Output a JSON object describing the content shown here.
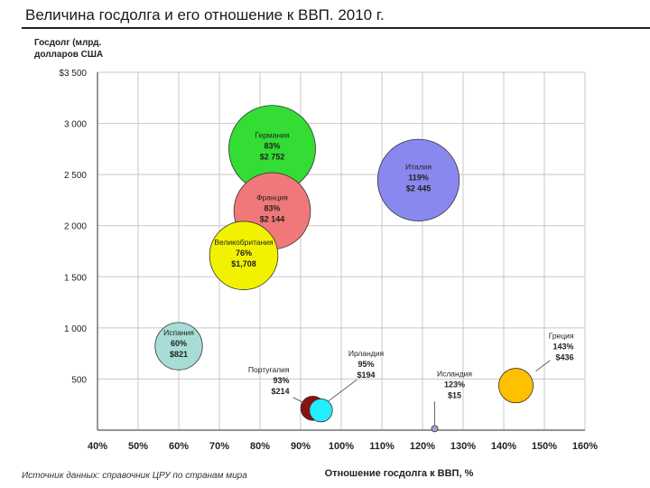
{
  "page": {
    "title": "Величина госдолга и его отношение к ВВП. 2010 г.",
    "source": "Источник данных: справочник ЦРУ по странам мира"
  },
  "chart_data": {
    "type": "bubble",
    "ylabel_lines": [
      "Госдолг (млрд.",
      "долларов США"
    ],
    "xlabel": "Отношение госдолга к ВВП, %",
    "xlim": [
      40,
      160
    ],
    "ylim": [
      0,
      3500
    ],
    "x_ticks": [
      {
        "v": 40,
        "label": "40%"
      },
      {
        "v": 50,
        "label": "50%"
      },
      {
        "v": 60,
        "label": "60%"
      },
      {
        "v": 70,
        "label": "70%"
      },
      {
        "v": 80,
        "label": "80%"
      },
      {
        "v": 90,
        "label": "90%"
      },
      {
        "v": 100,
        "label": "100%"
      },
      {
        "v": 110,
        "label": "110%"
      },
      {
        "v": 120,
        "label": "120%"
      },
      {
        "v": 130,
        "label": "130%"
      },
      {
        "v": 140,
        "label": "140%"
      },
      {
        "v": 150,
        "label": "150%"
      },
      {
        "v": 160,
        "label": "160%"
      }
    ],
    "y_ticks": [
      {
        "v": 500,
        "label": "500"
      },
      {
        "v": 1000,
        "label": "1 000"
      },
      {
        "v": 1500,
        "label": "1 500"
      },
      {
        "v": 2000,
        "label": "2 000"
      },
      {
        "v": 2500,
        "label": "2 500"
      },
      {
        "v": 3000,
        "label": "3 000"
      },
      {
        "v": 3500,
        "label": "$3 500"
      }
    ],
    "grid": true,
    "points": [
      {
        "name": "Германия",
        "pct_label": "83%",
        "val_label": "$2 752",
        "x": 83,
        "y": 2752,
        "debt": 2752,
        "color": "#33dd33",
        "label_mode": "inside"
      },
      {
        "name": "Италия",
        "pct_label": "119%",
        "val_label": "$2 445",
        "x": 119,
        "y": 2445,
        "debt": 2445,
        "color": "#8888ee",
        "label_mode": "inside"
      },
      {
        "name": "Франция",
        "pct_label": "83%",
        "val_label": "$2 144",
        "x": 83,
        "y": 2144,
        "debt": 2144,
        "color": "#f07878",
        "label_mode": "inside"
      },
      {
        "name": "Великобритания",
        "pct_label": "76%",
        "val_label": "$1,708",
        "x": 76,
        "y": 1708,
        "debt": 1708,
        "color": "#f2f200",
        "label_mode": "inside"
      },
      {
        "name": "Испания",
        "pct_label": "60%",
        "val_label": "$821",
        "x": 60,
        "y": 821,
        "debt": 821,
        "color": "#a8dcd6",
        "label_mode": "inside"
      },
      {
        "name": "Португалия",
        "pct_label": "93%",
        "val_label": "$214",
        "x": 93,
        "y": 214,
        "debt": 214,
        "color": "#8b1010",
        "label_mode": "outside",
        "anchor": "end"
      },
      {
        "name": "Ирландия",
        "pct_label": "95%",
        "val_label": "$194",
        "x": 95,
        "y": 194,
        "debt": 194,
        "color": "#22eeff",
        "label_mode": "outside",
        "anchor": "middle"
      },
      {
        "name": "Исландия",
        "pct_label": "123%",
        "val_label": "$15",
        "x": 123,
        "y": 15,
        "debt": 15,
        "color": "#9aa4dd",
        "label_mode": "outside",
        "anchor": "middle"
      },
      {
        "name": "Греция",
        "pct_label": "143%",
        "val_label": "$436",
        "x": 143,
        "y": 436,
        "debt": 436,
        "color": "#ffc000",
        "label_mode": "outside",
        "anchor": "end"
      }
    ]
  }
}
